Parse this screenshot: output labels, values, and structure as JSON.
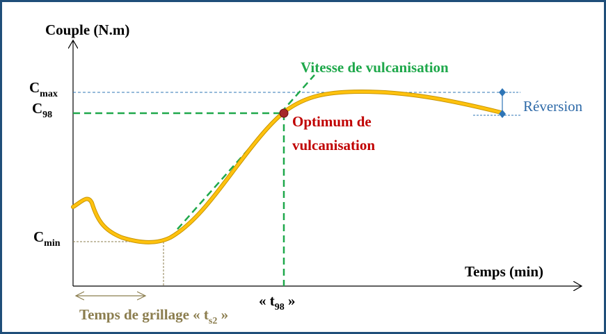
{
  "y_axis_label": "Couple (N.m)",
  "x_axis_label": "Temps (min)",
  "levels": {
    "cmax": {
      "symbol": "C",
      "subscript": "max"
    },
    "c98": {
      "symbol": "C",
      "subscript": "98"
    },
    "cmin": {
      "symbol": "C",
      "subscript": "min"
    }
  },
  "tangent_label": "Vitesse de vulcanisation",
  "optimum_label": [
    "Optimum de",
    "vulcanisation"
  ],
  "reversion_label": "Réversion",
  "t98_label": {
    "before": "« t",
    "subscript": "98",
    "after": " »"
  },
  "scorch_label": {
    "before": "Temps de grillage « t",
    "subscript": "s2",
    "after": " »"
  }
}
